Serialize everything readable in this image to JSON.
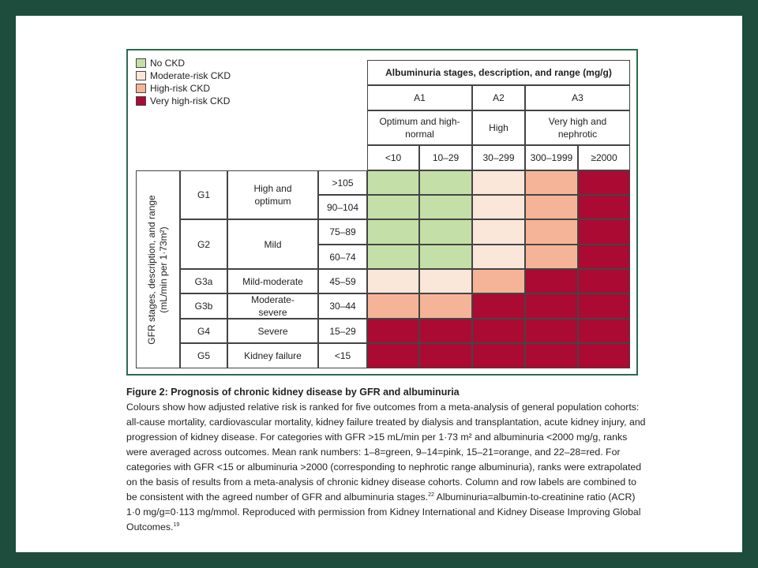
{
  "legend": [
    {
      "label": "No CKD",
      "color": "#c5dfa8"
    },
    {
      "label": "Moderate-risk CKD",
      "color": "#fbe6da"
    },
    {
      "label": "High-risk CKD",
      "color": "#f5b497"
    },
    {
      "label": "Very high-risk CKD",
      "color": "#ab0a33"
    }
  ],
  "albuminuria": {
    "title": "Albuminuria stages, description, and range (mg/g)",
    "stages": [
      {
        "name": "A1",
        "description": "Optimum and high-normal"
      },
      {
        "name": "A2",
        "description": "High"
      },
      {
        "name": "A3",
        "description": "Very high and nephrotic"
      }
    ],
    "ranges": [
      "<10",
      "10–29",
      "30–299",
      "300–1999",
      "≥2000"
    ]
  },
  "gfr": {
    "title": "GFR stages, description, and range (mL/min per 1·73m²)",
    "stages": [
      {
        "name": "G1",
        "description": "High and optimum",
        "ranges": [
          ">105",
          "90–104"
        ]
      },
      {
        "name": "G2",
        "description": "Mild",
        "ranges": [
          "75–89",
          "60–74"
        ]
      },
      {
        "name": "G3a",
        "description": "Mild-moderate",
        "ranges": [
          "45–59"
        ]
      },
      {
        "name": "G3b",
        "description": "Moderate-severe",
        "ranges": [
          "30–44"
        ]
      },
      {
        "name": "G4",
        "description": "Severe",
        "ranges": [
          "15–29"
        ]
      },
      {
        "name": "G5",
        "description": "Kidney failure",
        "ranges": [
          "<15"
        ]
      }
    ]
  },
  "cells": [
    [
      "#c5dfa8",
      "#c5dfa8",
      "#fbe6da",
      "#f5b497",
      "#ab0a33"
    ],
    [
      "#c5dfa8",
      "#c5dfa8",
      "#fbe6da",
      "#f5b497",
      "#ab0a33"
    ],
    [
      "#c5dfa8",
      "#c5dfa8",
      "#fbe6da",
      "#f5b497",
      "#ab0a33"
    ],
    [
      "#c5dfa8",
      "#c5dfa8",
      "#fbe6da",
      "#f5b497",
      "#ab0a33"
    ],
    [
      "#fbe6da",
      "#fbe6da",
      "#f5b497",
      "#ab0a33",
      "#ab0a33"
    ],
    [
      "#f5b497",
      "#f5b497",
      "#ab0a33",
      "#ab0a33",
      "#ab0a33"
    ],
    [
      "#ab0a33",
      "#ab0a33",
      "#ab0a33",
      "#ab0a33",
      "#ab0a33"
    ],
    [
      "#ab0a33",
      "#ab0a33",
      "#ab0a33",
      "#ab0a33",
      "#ab0a33"
    ]
  ],
  "caption": {
    "title": "Figure 2: Prognosis of chronic kidney disease by GFR and albuminuria",
    "text_1": "Colours show how adjusted relative risk is ranked for five outcomes from a meta-analysis of general population cohorts: all-cause mortality, cardiovascular mortality, kidney failure treated by dialysis and transplantation, acute kidney injury, and progression of kidney disease. For categories with GFR >15 mL/min per 1·73 m² and albuminuria <2000 mg/g, ranks were averaged across outcomes. Mean rank numbers: 1–8=green, 9–14=pink, 15–21=orange, and 22–28=red. For categories with GFR <15 or albuminuria >2000 (corresponding to nephrotic range albuminuria), ranks were extrapolated on the basis of results from a meta-analysis of chronic kidney disease cohorts. Column and row labels are combined to be consistent with the agreed number of GFR and albuminuria stages.",
    "ref_1": "22",
    "text_2": " Albuminuria=albumin-to-creatinine ratio (ACR) 1·0 mg/g=0·113 mg/mmol. Reproduced with permission from Kidney International and Kidney Disease Improving Global Outcomes.",
    "ref_2": "19"
  }
}
